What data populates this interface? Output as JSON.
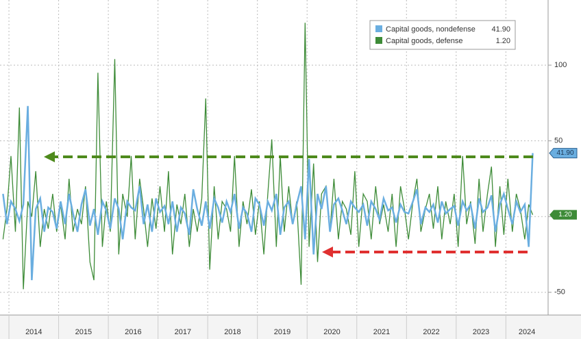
{
  "chart_data": {
    "type": "line",
    "x": [
      2013.88,
      2013.96,
      2014.04,
      2014.13,
      2014.21,
      2014.29,
      2014.38,
      2014.46,
      2014.54,
      2014.63,
      2014.71,
      2014.79,
      2014.88,
      2014.96,
      2015.04,
      2015.13,
      2015.21,
      2015.29,
      2015.38,
      2015.46,
      2015.54,
      2015.63,
      2015.71,
      2015.79,
      2015.88,
      2015.96,
      2016.04,
      2016.13,
      2016.21,
      2016.29,
      2016.38,
      2016.46,
      2016.54,
      2016.63,
      2016.71,
      2016.79,
      2016.88,
      2016.96,
      2017.04,
      2017.13,
      2017.21,
      2017.29,
      2017.38,
      2017.46,
      2017.54,
      2017.63,
      2017.71,
      2017.79,
      2017.88,
      2017.96,
      2018.04,
      2018.13,
      2018.21,
      2018.29,
      2018.38,
      2018.46,
      2018.54,
      2018.63,
      2018.71,
      2018.79,
      2018.88,
      2018.96,
      2019.04,
      2019.13,
      2019.21,
      2019.29,
      2019.38,
      2019.46,
      2019.54,
      2019.63,
      2019.71,
      2019.79,
      2019.88,
      2019.96,
      2020.04,
      2020.13,
      2020.21,
      2020.29,
      2020.38,
      2020.46,
      2020.54,
      2020.63,
      2020.71,
      2020.79,
      2020.88,
      2020.96,
      2021.04,
      2021.13,
      2021.21,
      2021.29,
      2021.38,
      2021.46,
      2021.54,
      2021.63,
      2021.71,
      2021.79,
      2021.88,
      2021.96,
      2022.04,
      2022.13,
      2022.21,
      2022.29,
      2022.38,
      2022.46,
      2022.54,
      2022.63,
      2022.71,
      2022.79,
      2022.88,
      2022.96,
      2023.04,
      2023.13,
      2023.21,
      2023.29,
      2023.38,
      2023.46,
      2023.54,
      2023.63,
      2023.71,
      2023.79,
      2023.88,
      2023.96,
      2024.04,
      2024.13,
      2024.21,
      2024.29,
      2024.38,
      2024.46,
      2024.54
    ],
    "series": [
      {
        "name": "Capital goods, nondefense",
        "color": "#6aaee0",
        "last_label": "41.90",
        "values": [
          15,
          -5,
          10,
          5,
          -3,
          8,
          73,
          -42,
          5,
          12,
          -10,
          6,
          3,
          -8,
          10,
          -5,
          15,
          2,
          -10,
          8,
          18,
          -6,
          5,
          -12,
          10,
          4,
          -8,
          12,
          5,
          -15,
          10,
          6,
          4,
          20,
          -5,
          8,
          -10,
          12,
          3,
          7,
          -5,
          10,
          -10,
          6,
          2,
          -12,
          18,
          5,
          -6,
          10,
          -8,
          12,
          6,
          -4,
          10,
          3,
          15,
          -8,
          6,
          2,
          -10,
          12,
          8,
          -6,
          10,
          4,
          15,
          -12,
          6,
          10,
          -5,
          8,
          20,
          -15,
          38,
          -25,
          15,
          5,
          20,
          -10,
          8,
          12,
          4,
          -5,
          10,
          6,
          3,
          8,
          -6,
          10,
          5,
          -2,
          12,
          4,
          6,
          -4,
          8,
          3,
          2,
          10,
          18,
          -5,
          6,
          3,
          8,
          -4,
          10,
          2,
          5,
          7,
          -6,
          10,
          4,
          8,
          -8,
          12,
          3,
          6,
          14,
          -10,
          8,
          15,
          5,
          -5,
          10,
          3,
          8,
          -20,
          41.9
        ]
      },
      {
        "name": "Capital goods, defense",
        "color": "#3d8b37",
        "last_label": "1.20",
        "values": [
          -15,
          5,
          40,
          -10,
          72,
          -48,
          10,
          0,
          30,
          -20,
          5,
          -8,
          15,
          -10,
          8,
          -15,
          25,
          -10,
          5,
          -5,
          20,
          -30,
          -42,
          95,
          -20,
          10,
          -10,
          104,
          -25,
          15,
          0,
          40,
          -15,
          25,
          5,
          -20,
          12,
          -8,
          20,
          -10,
          30,
          -25,
          8,
          -5,
          15,
          -20,
          5,
          -10,
          12,
          78,
          -35,
          20,
          -15,
          10,
          5,
          -10,
          40,
          -20,
          10,
          -5,
          18,
          -12,
          10,
          -25,
          15,
          51,
          -20,
          40,
          -10,
          20,
          -5,
          10,
          -45,
          128,
          -20,
          35,
          -30,
          15,
          20,
          -10,
          25,
          -15,
          10,
          5,
          -12,
          30,
          -20,
          15,
          10,
          -15,
          20,
          -5,
          8,
          -10,
          15,
          -20,
          20,
          5,
          -15,
          10,
          25,
          -10,
          5,
          15,
          -8,
          20,
          -15,
          10,
          -5,
          15,
          -20,
          40,
          -5,
          10,
          -18,
          25,
          -10,
          15,
          33,
          -20,
          20,
          -12,
          25,
          -10,
          15,
          5,
          -15,
          8,
          1.2
        ]
      }
    ],
    "xlim": [
      2013.82,
      2024.85
    ],
    "xticks": [
      {
        "value": 2014,
        "label": "2014"
      },
      {
        "value": 2015,
        "label": "2015"
      },
      {
        "value": 2016,
        "label": "2016"
      },
      {
        "value": 2017,
        "label": "2017"
      },
      {
        "value": 2018,
        "label": "2018"
      },
      {
        "value": 2019,
        "label": "2019"
      },
      {
        "value": 2020,
        "label": "2020"
      },
      {
        "value": 2021,
        "label": "2021"
      },
      {
        "value": 2022,
        "label": "2022"
      },
      {
        "value": 2023,
        "label": "2023"
      },
      {
        "value": 2024,
        "label": "2024"
      }
    ],
    "ylim": [
      -65,
      143
    ],
    "yticks": [
      -50,
      0,
      50,
      100
    ],
    "grid": true
  }
}
